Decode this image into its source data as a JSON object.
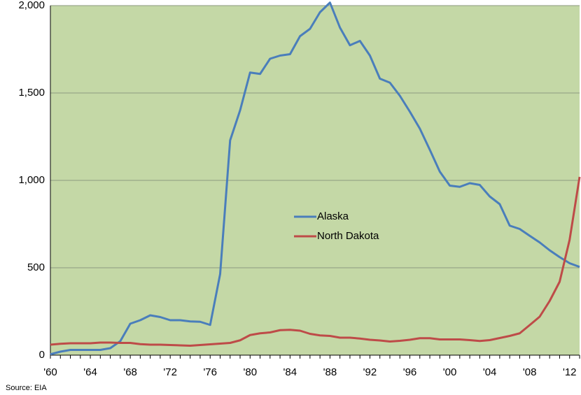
{
  "chart_data": {
    "type": "line",
    "annotations": [
      "Source: EIA"
    ],
    "categories": [
      "'60",
      null,
      null,
      null,
      "'64",
      null,
      null,
      null,
      "'68",
      null,
      null,
      null,
      "'72",
      null,
      null,
      null,
      "'76",
      null,
      null,
      null,
      "'80",
      null,
      null,
      null,
      "'84",
      null,
      null,
      null,
      "'88",
      null,
      null,
      null,
      "'92",
      null,
      null,
      null,
      "'96",
      null,
      null,
      null,
      "'00",
      null,
      null,
      null,
      "'04",
      null,
      null,
      null,
      "'08",
      null,
      null,
      null,
      "'12",
      null
    ],
    "series": [
      {
        "name": "Alaska",
        "color": "#4a7ebb",
        "values": [
          5,
          20,
          30,
          30,
          30,
          30,
          40,
          80,
          180,
          200,
          228,
          218,
          200,
          200,
          193,
          191,
          173,
          464,
          1229,
          1401,
          1617,
          1609,
          1696,
          1714,
          1722,
          1825,
          1867,
          1962,
          2017,
          1874,
          1773,
          1798,
          1714,
          1582,
          1559,
          1484,
          1393,
          1296,
          1175,
          1050,
          970,
          963,
          984,
          974,
          908,
          864,
          741,
          722,
          683,
          645,
          600,
          561,
          526,
          505
        ]
      },
      {
        "name": "North Dakota",
        "color": "#be4b48",
        "values": [
          60,
          65,
          68,
          68,
          68,
          72,
          72,
          70,
          70,
          63,
          60,
          60,
          58,
          56,
          54,
          58,
          62,
          66,
          70,
          85,
          115,
          125,
          130,
          143,
          145,
          140,
          122,
          113,
          110,
          100,
          100,
          95,
          88,
          84,
          78,
          82,
          88,
          97,
          97,
          90,
          90,
          90,
          86,
          81,
          86,
          98,
          110,
          125,
          172,
          220,
          310,
          420,
          660,
          1020
        ]
      }
    ],
    "ylim": [
      0,
      2000
    ],
    "yticks": [
      0,
      500,
      {
        "value": 1000,
        "label": "1,000"
      },
      {
        "value": 1500,
        "label": "1,500"
      },
      {
        "value": 2000,
        "label": "2,000"
      }
    ],
    "grid": true,
    "legend": "center"
  }
}
